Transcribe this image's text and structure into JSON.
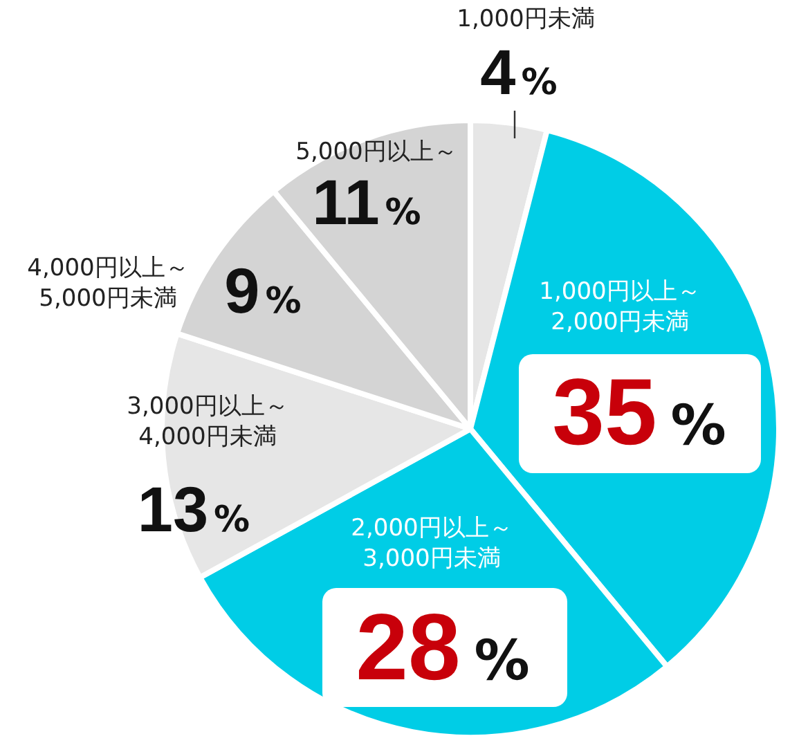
{
  "chart_data": {
    "type": "pie",
    "categories": [
      "1,000円未満",
      "1,000円以上～\n2,000円未満",
      "2,000円以上～\n3,000円未満",
      "3,000円以上～\n4,000円未満",
      "4,000円以上～\n5,000円未満",
      "5,000円以上～"
    ],
    "values": [
      4,
      35,
      28,
      13,
      9,
      11
    ],
    "colors": [
      "#e6e6e6",
      "#00cde6",
      "#00cde6",
      "#e6e6e6",
      "#d4d4d4",
      "#d4d4d4"
    ],
    "value_labels": [
      "4%",
      "35%",
      "28%",
      "13%",
      "9%",
      "11%"
    ],
    "legend": false
  }
}
